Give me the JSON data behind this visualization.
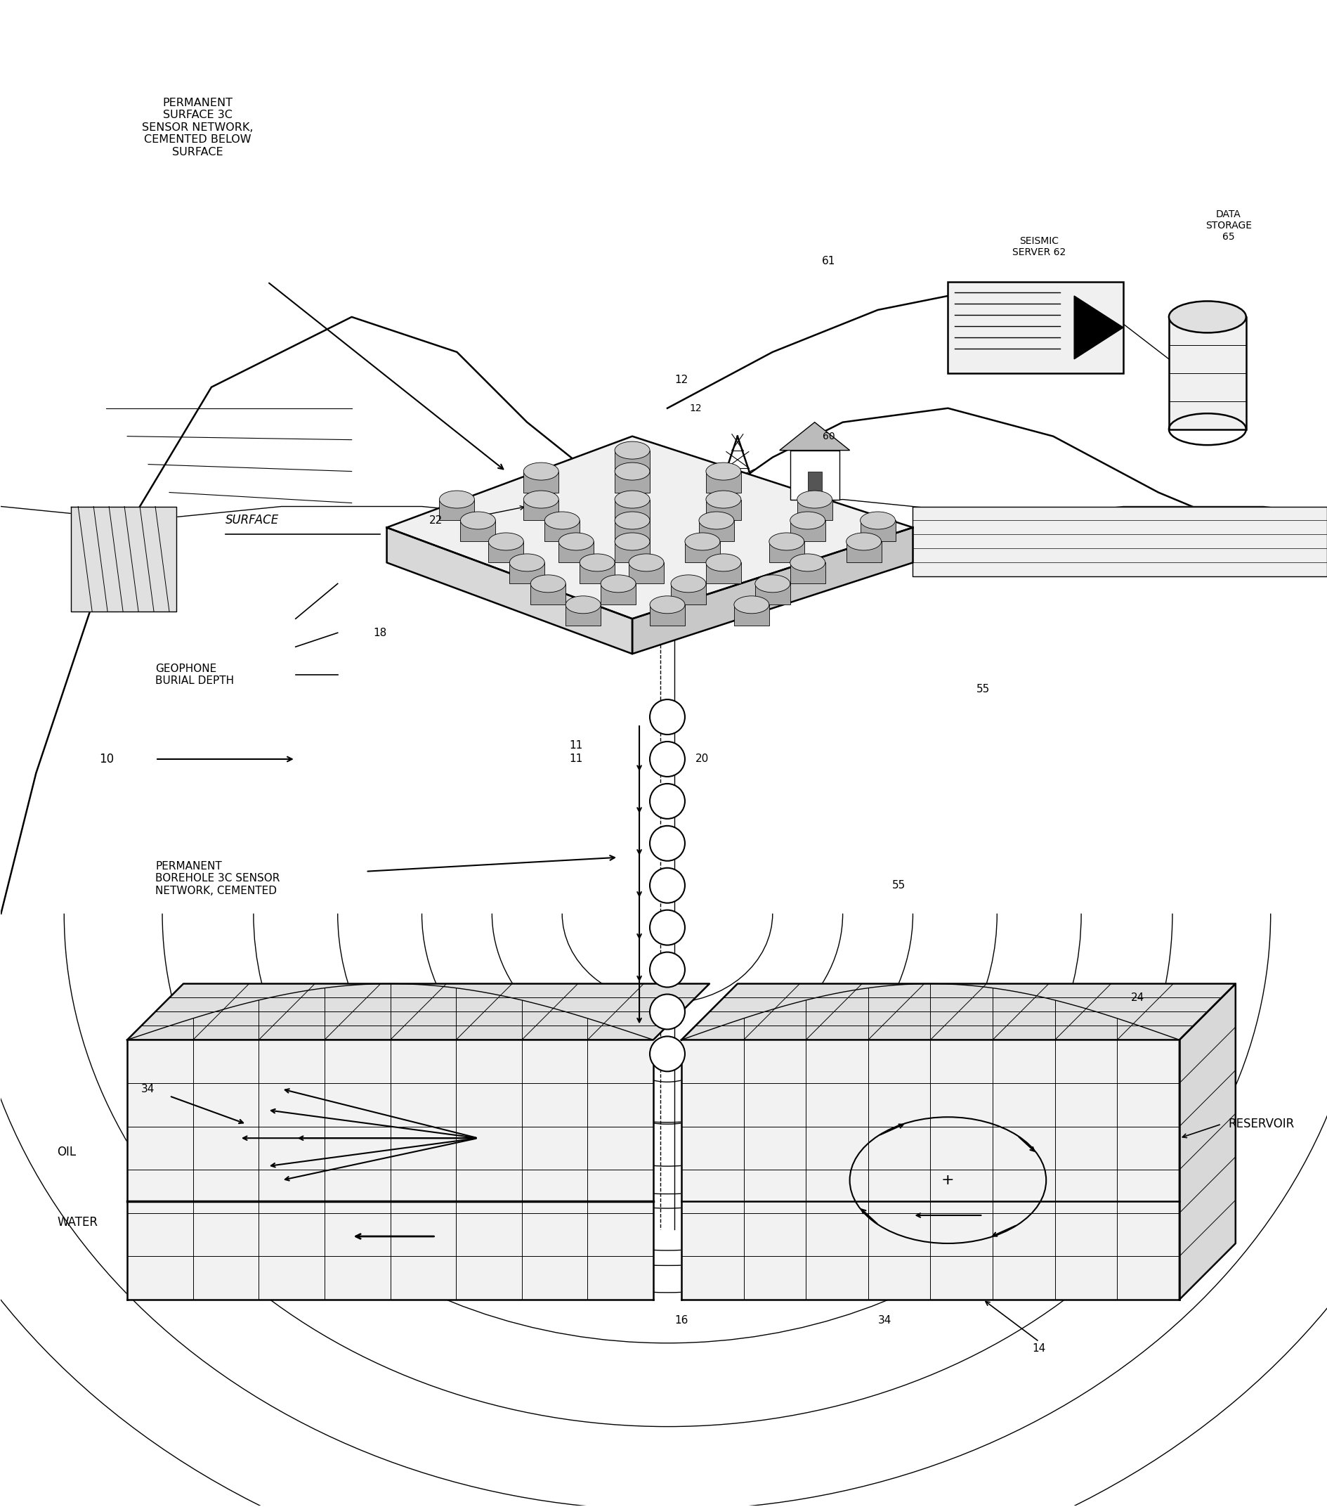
{
  "bg_color": "#ffffff",
  "line_color": "#000000",
  "fig_width": 18.9,
  "fig_height": 21.44,
  "labels": {
    "permanent_surface": "PERMANENT\nSURFACE 3C\nSENSOR NETWORK,\nCEMENTED BELOW\nSURFACE",
    "surface": "SURFACE",
    "geophone_burial": "GEOPHONE\nBURIAL DEPTH",
    "permanent_borehole": "PERMANENT\nBOREHOLE 3C SENSOR\nNETWORK, CEMENTED",
    "seismic_server": "SEISMIC\nSERVER 62",
    "data_storage": "DATA\nSTORAGE\n65",
    "reservoir": "RESERVOIR",
    "oil": "OIL",
    "water": "WATER"
  }
}
